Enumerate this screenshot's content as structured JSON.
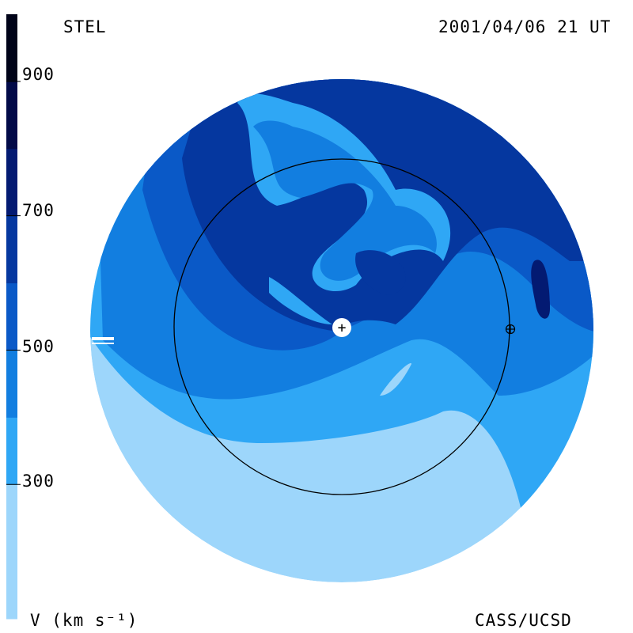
{
  "header": {
    "station": "STEL",
    "timestamp": "2001/04/06 21 UT"
  },
  "colorbar": {
    "unit_label": "V (km s⁻¹)",
    "ticks": [
      "300",
      "500",
      "700",
      "900"
    ],
    "bands": [
      {
        "from": 100,
        "to": 300,
        "color": "#9dd6fb"
      },
      {
        "from": 300,
        "to": 400,
        "color": "#2fa7f5"
      },
      {
        "from": 400,
        "to": 500,
        "color": "#127ee0"
      },
      {
        "from": 500,
        "to": 600,
        "color": "#0a59c7"
      },
      {
        "from": 600,
        "to": 700,
        "color": "#05379f"
      },
      {
        "from": 700,
        "to": 800,
        "color": "#031a72"
      },
      {
        "from": 800,
        "to": 900,
        "color": "#020a48"
      },
      {
        "from": 900,
        "to": 1000,
        "color": "#000318"
      }
    ]
  },
  "footer": {
    "credit": "CASS/UCSD"
  },
  "map": {
    "center_symbol": "+",
    "earth_symbol": "⊕"
  }
}
